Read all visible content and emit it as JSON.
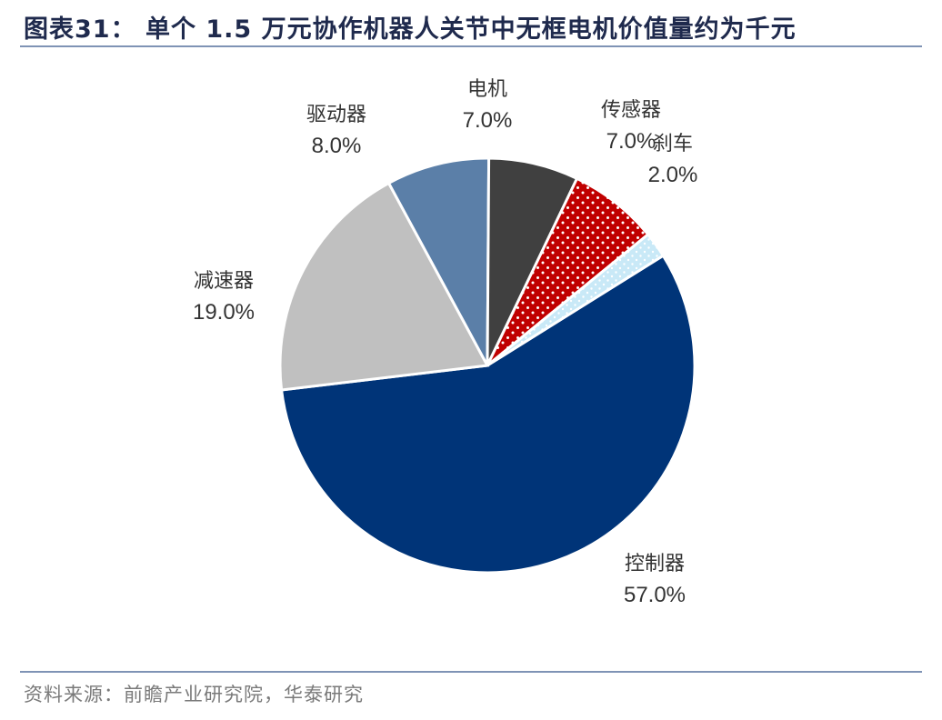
{
  "header": {
    "title": "图表31： 单个 1.5 万元协作机器人关节中无框电机价值量约为千元"
  },
  "footer": {
    "source": "资料来源：前瞻产业研究院，华泰研究"
  },
  "colors": {
    "controller": "#003478",
    "reducer": "#c0c0c0",
    "driver": "#5b7fa8",
    "motor": "#404040",
    "sensor": "#c00000",
    "brake": "#c9e9f7",
    "title": "#1f2a4d",
    "rule": "#7f93b5"
  },
  "chart_data": {
    "type": "pie",
    "title": "单个 1.5 万元协作机器人关节中无框电机价值量约为千元",
    "slices": [
      {
        "label": "控制器",
        "value": 57.0,
        "display": "57.0%",
        "color": "#003478",
        "pattern": "none"
      },
      {
        "label": "减速器",
        "value": 19.0,
        "display": "19.0%",
        "color": "#c0c0c0",
        "pattern": "none"
      },
      {
        "label": "驱动器",
        "value": 8.0,
        "display": "8.0%",
        "color": "#5b7fa8",
        "pattern": "none"
      },
      {
        "label": "电机",
        "value": 7.0,
        "display": "7.0%",
        "color": "#404040",
        "pattern": "none"
      },
      {
        "label": "传感器",
        "value": 7.0,
        "display": "7.0%",
        "color": "#c00000",
        "pattern": "dots"
      },
      {
        "label": "刹车",
        "value": 2.0,
        "display": "2.0%",
        "color": "#c9e9f7",
        "pattern": "dots"
      }
    ],
    "legend": "none",
    "label_placement": "outside"
  }
}
